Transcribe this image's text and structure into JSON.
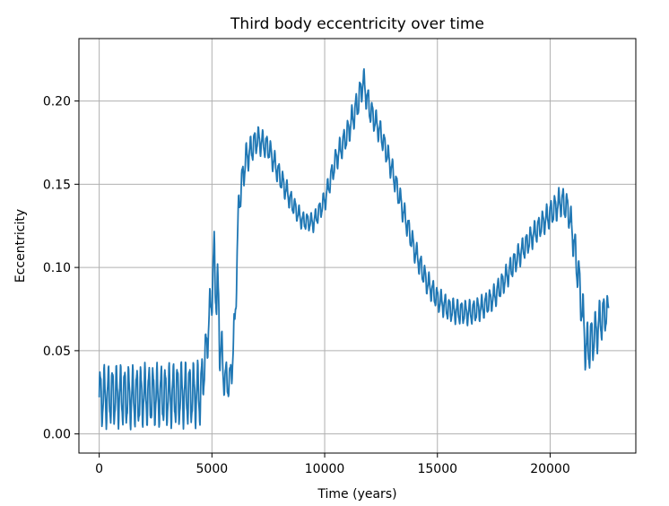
{
  "chart_data": {
    "type": "line",
    "title": "Third body eccentricity over time",
    "xlabel": "Time (years)",
    "ylabel": "Eccentricity",
    "xlim": [
      -900,
      23800
    ],
    "ylim": [
      -0.0115,
      0.2375
    ],
    "xticks": [
      0,
      5000,
      10000,
      15000,
      20000
    ],
    "xtick_labels": [
      "0",
      "5000",
      "10000",
      "15000",
      "20000"
    ],
    "yticks": [
      0.0,
      0.05,
      0.1,
      0.15,
      0.2
    ],
    "ytick_labels": [
      "0.00",
      "0.05",
      "0.10",
      "0.15",
      "0.20"
    ],
    "grid": true,
    "line_color": "#1f77b4",
    "series": [
      {
        "x": [
          0,
          500,
          1000,
          1500,
          2000,
          2500,
          3000,
          3500,
          4000,
          4500,
          4700,
          5000,
          5100,
          5300,
          5500,
          5800,
          6000,
          6200,
          6500,
          7000,
          7500,
          8000,
          8500,
          9000,
          9500,
          10000,
          10500,
          11000,
          11500,
          11700,
          12000,
          12500,
          13000,
          13500,
          14000,
          14500,
          15000,
          15500,
          16000,
          16500,
          17000,
          17500,
          18000,
          18500,
          19000,
          19500,
          20000,
          20500,
          20800,
          21000,
          21300,
          21600,
          22000,
          22300,
          22600
        ],
        "y": [
          0.022,
          0.023,
          0.023,
          0.022,
          0.023,
          0.023,
          0.023,
          0.024,
          0.024,
          0.024,
          0.045,
          0.085,
          0.105,
          0.07,
          0.035,
          0.03,
          0.06,
          0.14,
          0.165,
          0.177,
          0.172,
          0.155,
          0.14,
          0.128,
          0.127,
          0.14,
          0.165,
          0.18,
          0.2,
          0.212,
          0.195,
          0.18,
          0.158,
          0.133,
          0.11,
          0.092,
          0.081,
          0.075,
          0.073,
          0.073,
          0.076,
          0.082,
          0.093,
          0.105,
          0.115,
          0.124,
          0.132,
          0.14,
          0.135,
          0.12,
          0.09,
          0.05,
          0.06,
          0.07,
          0.074
        ],
        "amplitude": [
          0.02,
          0.02,
          0.02,
          0.02,
          0.02,
          0.02,
          0.02,
          0.021,
          0.021,
          0.021,
          0.015,
          0.015,
          0.02,
          0.03,
          0.012,
          0.012,
          0.015,
          0.012,
          0.01,
          0.009,
          0.008,
          0.008,
          0.007,
          0.006,
          0.006,
          0.007,
          0.008,
          0.009,
          0.01,
          0.01,
          0.009,
          0.008,
          0.008,
          0.008,
          0.008,
          0.008,
          0.008,
          0.008,
          0.008,
          0.008,
          0.008,
          0.008,
          0.008,
          0.008,
          0.008,
          0.008,
          0.009,
          0.01,
          0.01,
          0.012,
          0.015,
          0.018,
          0.015,
          0.015,
          0.01
        ]
      }
    ]
  }
}
